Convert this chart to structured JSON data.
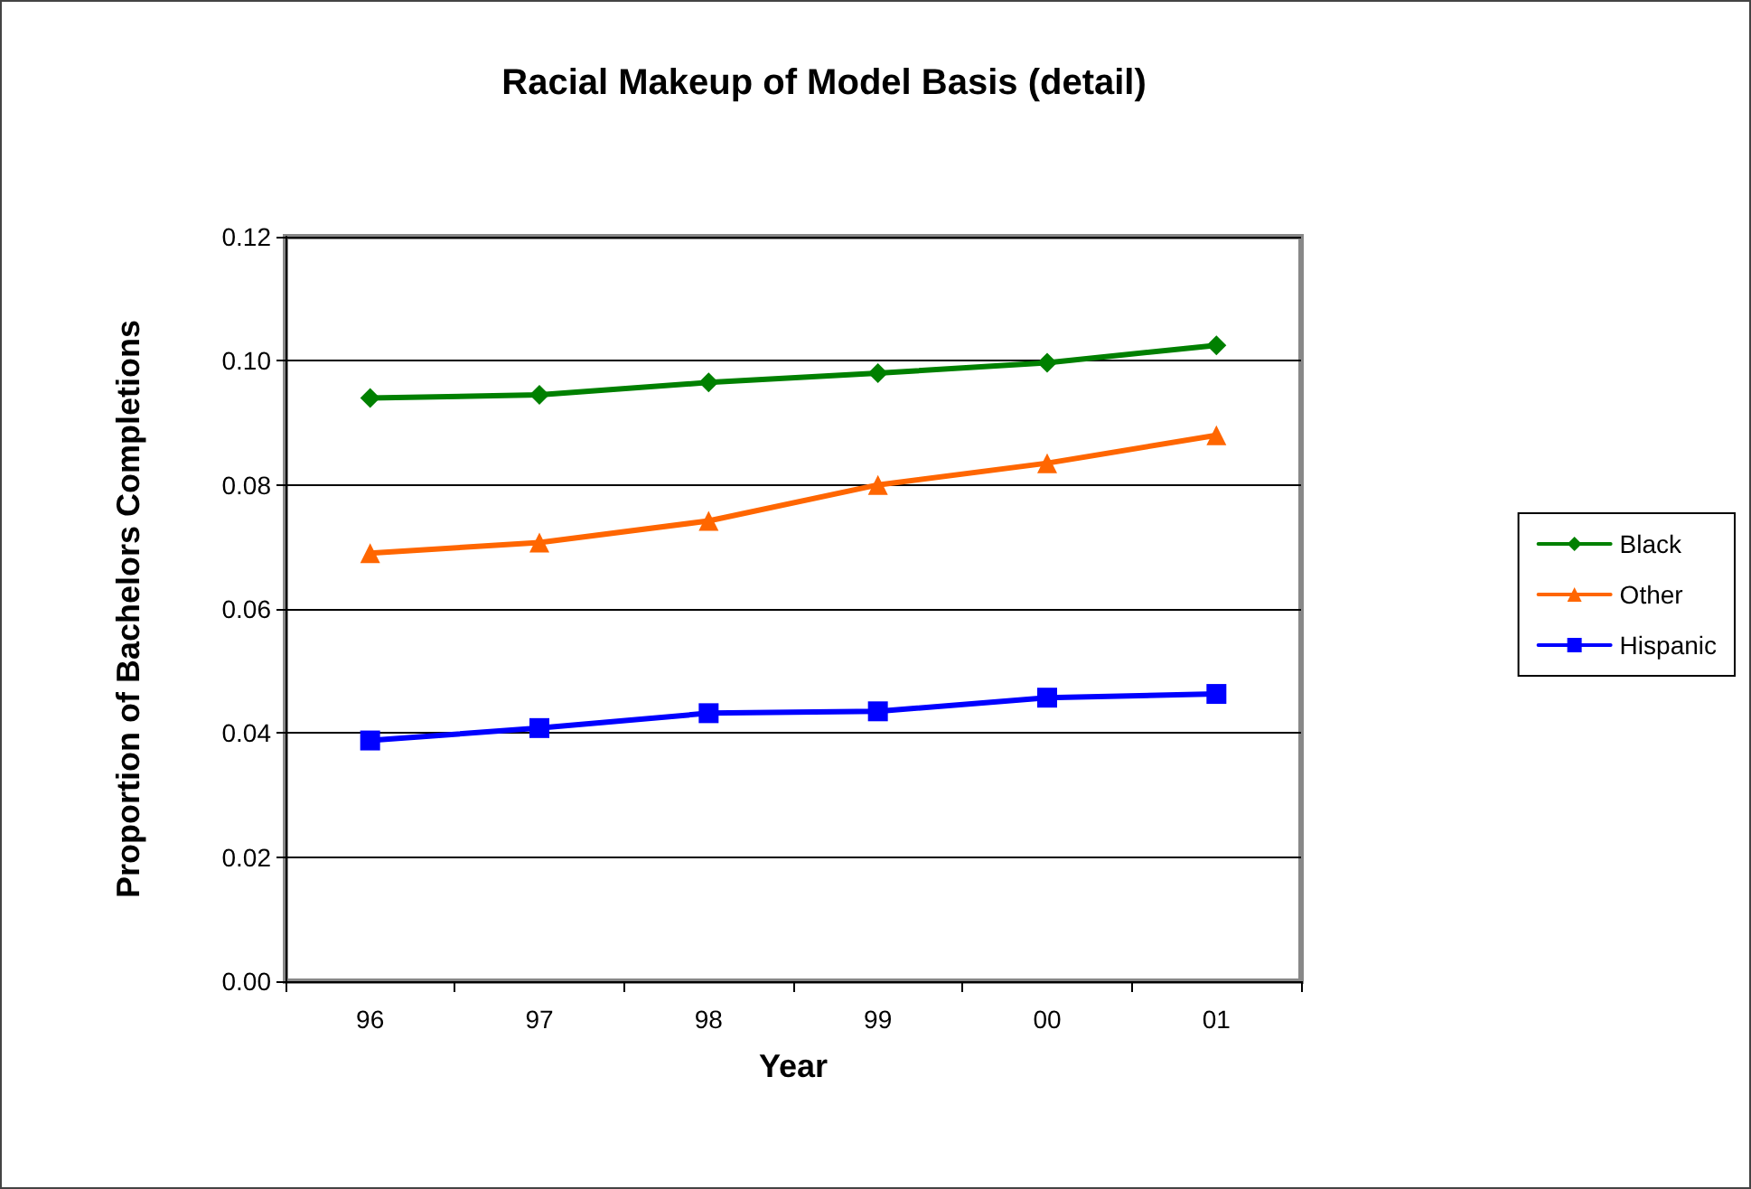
{
  "chart_data": {
    "type": "line",
    "title": "Racial Makeup of Model Basis (detail)",
    "xlabel": "Year",
    "ylabel": "Proportion of Bachelors Completions",
    "categories": [
      "96",
      "97",
      "98",
      "99",
      "00",
      "01"
    ],
    "series": [
      {
        "name": "Black",
        "color": "#008000",
        "marker": "diamond",
        "values": [
          0.094,
          0.0945,
          0.0965,
          0.098,
          0.0997,
          0.1025
        ]
      },
      {
        "name": "Other",
        "color": "#ff6600",
        "marker": "triangle",
        "values": [
          0.069,
          0.0707,
          0.0742,
          0.08,
          0.0835,
          0.088
        ]
      },
      {
        "name": "Hispanic",
        "color": "#0000ff",
        "marker": "square",
        "values": [
          0.0388,
          0.0408,
          0.0432,
          0.0435,
          0.0457,
          0.0463
        ]
      }
    ],
    "ylim": [
      0,
      0.12
    ],
    "yticks": [
      {
        "value": 0,
        "label": "0.00"
      },
      {
        "value": 0.02,
        "label": "0.02"
      },
      {
        "value": 0.04,
        "label": "0.04"
      },
      {
        "value": 0.06,
        "label": "0.06"
      },
      {
        "value": 0.08,
        "label": "0.08"
      },
      {
        "value": 0.1,
        "label": "0.10"
      },
      {
        "value": 0.12,
        "label": "0.12"
      }
    ],
    "grid": "y",
    "legend": "right",
    "line_style": "solid"
  }
}
